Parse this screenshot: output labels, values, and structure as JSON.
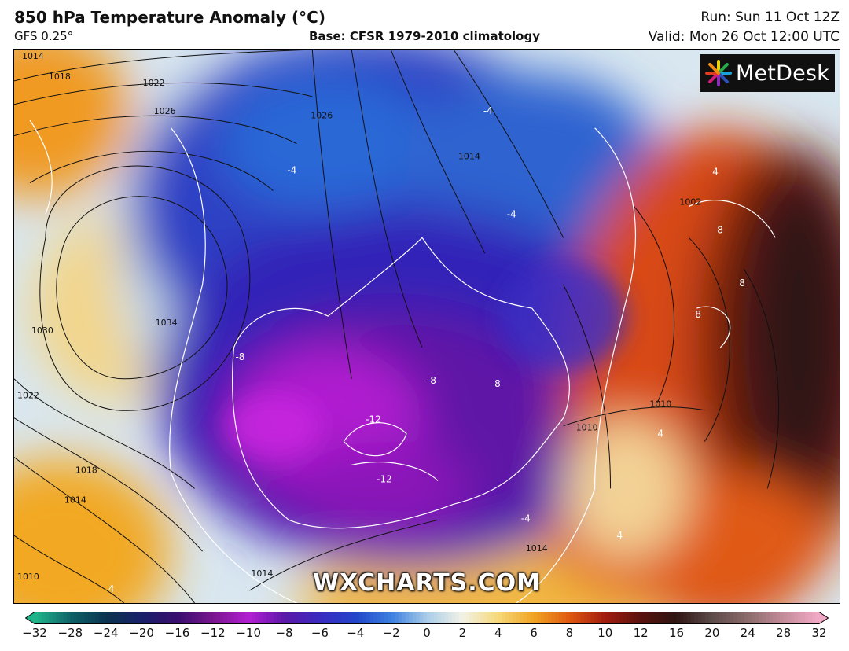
{
  "header": {
    "title": "850 hPa Temperature Anomaly (°C)",
    "model": "GFS 0.25°",
    "base": "Base: CFSR 1979-2010 climatology",
    "run": "Run: Sun 11 Oct 12Z",
    "valid": "Valid: Mon 26 Oct 12:00 UTC"
  },
  "logo": {
    "text": "MetDesk"
  },
  "watermark": "WXCHARTS.COM",
  "isobar_labels": [
    "1014",
    "1018",
    "1022",
    "1026",
    "1030",
    "1034",
    "1022",
    "1018",
    "1014",
    "1010",
    "1014",
    "1026",
    "1014",
    "1002",
    "1010",
    "1010",
    "1014"
  ],
  "anomaly_labels": [
    "-4",
    "-4",
    "-4",
    "-8",
    "-8",
    "-8",
    "-12",
    "-12",
    "-4",
    "4",
    "8",
    "8",
    "8",
    "4",
    "4",
    "4"
  ],
  "colorbar": {
    "ticks": [
      "−32",
      "−28",
      "−24",
      "−20",
      "−16",
      "−12",
      "−10",
      "−8",
      "−6",
      "−4",
      "−2",
      "0",
      "2",
      "4",
      "6",
      "8",
      "10",
      "12",
      "16",
      "20",
      "24",
      "28",
      "32"
    ],
    "colors": [
      "#1fb38a",
      "#0d5f66",
      "#0b3350",
      "#1a1f6a",
      "#3b0e6e",
      "#7a168f",
      "#b21fd2",
      "#5a18a8",
      "#3a2bc0",
      "#2245c9",
      "#3c7fe0",
      "#a9cde8",
      "#f2f2e6",
      "#f6d97a",
      "#f0a422",
      "#e05a12",
      "#a31d0e",
      "#5a120e",
      "#2e1412",
      "#5a4a48",
      "#8a6a6a",
      "#c28a98",
      "#f0a8c4"
    ]
  }
}
